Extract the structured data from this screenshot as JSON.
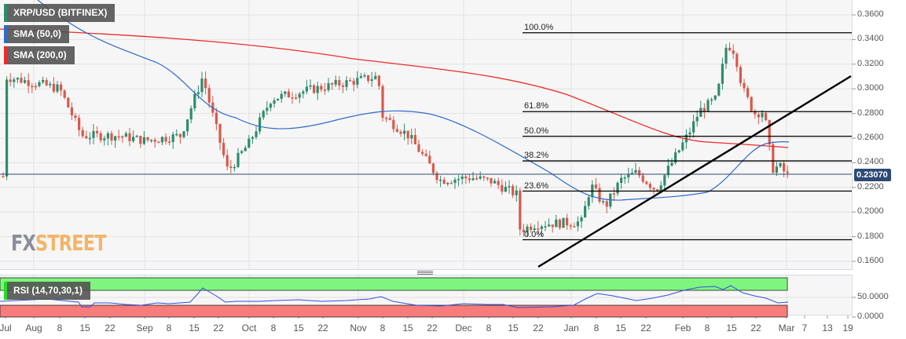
{
  "chart_data": {
    "type": "candlestick",
    "title": "XRP/USD (BITFINEX)",
    "symbol": "XRP/USD",
    "exchange": "BITFINEX",
    "indicators": [
      {
        "name": "SMA (50,0)",
        "color": "#2f6bc9"
      },
      {
        "name": "SMA (200,0)",
        "color": "#ee2a2a"
      }
    ],
    "price_axis": {
      "ticks": [
        "0.3600",
        "0.3400",
        "0.3200",
        "0.3000",
        "0.2800",
        "0.2600",
        "0.2400",
        "0.2200",
        "0.2000",
        "0.1800",
        "0.1600"
      ],
      "range": [
        0.155,
        0.367
      ]
    },
    "current_price": "0.23070",
    "x_axis_ticks": [
      "Jul",
      "Aug",
      "8",
      "15",
      "22",
      "Sep",
      "8",
      "15",
      "22",
      "Oct",
      "8",
      "15",
      "22",
      "Nov",
      "8",
      "15",
      "22",
      "Dec",
      "8",
      "15",
      "22",
      "Jan",
      "8",
      "15",
      "22",
      "Feb",
      "8",
      "15",
      "22",
      "Mar",
      "7",
      "13",
      "19"
    ],
    "fibonacci": {
      "levels": [
        {
          "label": "100.0%",
          "price": 0.3455
        },
        {
          "label": "61.8%",
          "price": 0.2815
        },
        {
          "label": "50.0%",
          "price": 0.2615
        },
        {
          "label": "38.2%",
          "price": 0.2415
        },
        {
          "label": "23.6%",
          "price": 0.217
        },
        {
          "label": "0.0%",
          "price": 0.1775
        }
      ]
    },
    "trendline": {
      "from": {
        "date": "Dec 22",
        "price": 0.158
      },
      "to": {
        "date": "Mar 19",
        "price": 0.31
      }
    },
    "rsi": {
      "label": "RSI (14,70,30,1)",
      "ticks": [
        "50.0000",
        "0.0000"
      ],
      "overbought": 70,
      "oversold": 30,
      "current_approx": 37
    },
    "approx_closes": [
      {
        "date": "Jul",
        "price": 0.31
      },
      {
        "date": "Aug 8",
        "price": 0.3
      },
      {
        "date": "Aug 15",
        "price": 0.262
      },
      {
        "date": "Sep 1",
        "price": 0.258
      },
      {
        "date": "Sep 18",
        "price": 0.31
      },
      {
        "date": "Sep 24",
        "price": 0.233
      },
      {
        "date": "Oct 15",
        "price": 0.29
      },
      {
        "date": "Nov 7",
        "price": 0.308
      },
      {
        "date": "Nov 25",
        "price": 0.232
      },
      {
        "date": "Dec 15",
        "price": 0.215
      },
      {
        "date": "Dec 18",
        "price": 0.18
      },
      {
        "date": "Jan 5",
        "price": 0.19
      },
      {
        "date": "Jan 15",
        "price": 0.234
      },
      {
        "date": "Feb 1",
        "price": 0.262
      },
      {
        "date": "Feb 14",
        "price": 0.337
      },
      {
        "date": "Feb 22",
        "price": 0.275
      },
      {
        "date": "Feb 25",
        "price": 0.235
      },
      {
        "date": "Mar 2",
        "price": 0.2307
      }
    ]
  },
  "legend": {
    "symbol": "XRP/USD (BITFINEX)",
    "sma50": "SMA (50,0)",
    "sma200": "SMA (200,0)",
    "rsi": "RSI (14,70,30,1)"
  },
  "colors": {
    "bull": "#2e8b6e",
    "bear": "#d9594c",
    "sma50": "#2f6bc9",
    "sma200": "#ee2a2a",
    "rsi_ob": "#7ef57e",
    "rsi_os": "#f77c7c",
    "price_line": "#2d4a73"
  },
  "logo": {
    "fx": "FX",
    "street": "STREET"
  }
}
